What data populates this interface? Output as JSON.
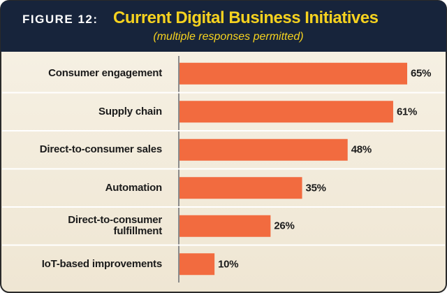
{
  "chart_data": {
    "type": "bar",
    "orientation": "horizontal",
    "title_label": "FIGURE 12:",
    "title": "Current Digital Business Initiatives",
    "subtitle": "(multiple responses permitted)",
    "categories": [
      "Consumer engagement",
      "Supply chain",
      "Direct-to-consumer sales",
      "Automation",
      "Direct-to-consumer\nfulfillment",
      "IoT-based improvements"
    ],
    "values": [
      65,
      61,
      48,
      35,
      26,
      10
    ],
    "value_labels": [
      "65%",
      "61%",
      "48%",
      "35%",
      "26%",
      "10%"
    ],
    "color": "#f26b3f"
  }
}
